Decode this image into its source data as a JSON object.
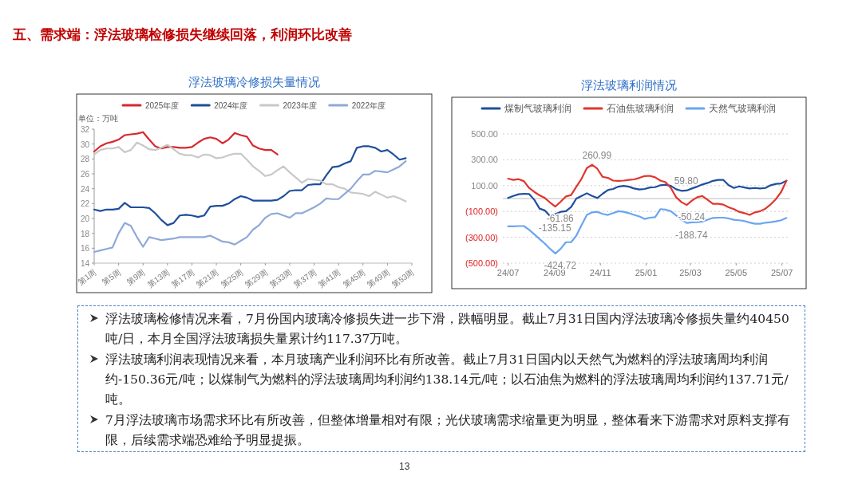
{
  "chart_data": [
    {
      "type": "other",
      "title": "五、需求端：浮法玻璃检修损失继续回落，利润环比改善"
    },
    {
      "type": "line",
      "title": "浮法玻璃冷修损失量情况",
      "ylabel": "单位：万吨",
      "legend": "top",
      "grid": false,
      "categories": [
        "第1周",
        null,
        null,
        null,
        "第5周",
        null,
        null,
        null,
        "第9周",
        null,
        null,
        null,
        "第13周",
        null,
        null,
        null,
        "第17周",
        null,
        null,
        null,
        "第21周",
        null,
        null,
        null,
        "第25周",
        null,
        null,
        null,
        "第29周",
        null,
        null,
        null,
        "第33周",
        null,
        null,
        null,
        "第37周",
        null,
        null,
        null,
        "第41周",
        null,
        null,
        null,
        "第45周",
        null,
        null,
        null,
        "第49周",
        null,
        null,
        null,
        "第53周"
      ],
      "ylim": [
        14,
        32
      ],
      "yticks": [
        14,
        16,
        18,
        20,
        22,
        24,
        26,
        28,
        30,
        32
      ],
      "series": [
        {
          "name": "2025年度",
          "color": "#d7282f",
          "values": [
            29.0,
            29.7,
            30.1,
            30.3,
            30.6,
            31.2,
            31.3,
            31.4,
            31.6,
            30.6,
            29.7,
            29.4,
            29.6,
            29.6,
            29.5,
            29.5,
            29.6,
            30.2,
            30.7,
            30.9,
            30.7,
            30.1,
            30.6,
            31.5,
            31.2,
            31.0,
            29.8,
            29.4,
            29.2,
            29.2,
            28.6,
            null,
            null,
            null,
            null,
            null,
            null,
            null,
            null,
            null,
            null,
            null,
            null,
            null,
            null,
            null,
            null,
            null,
            null,
            null,
            null,
            null,
            null
          ]
        },
        {
          "name": "2024年度",
          "color": "#1f4e9c",
          "values": [
            21.2,
            21.0,
            21.2,
            21.2,
            21.3,
            22.1,
            21.5,
            21.5,
            21.5,
            21.4,
            20.7,
            19.8,
            19.1,
            19.4,
            20.4,
            20.5,
            20.4,
            20.2,
            20.4,
            21.6,
            21.7,
            21.7,
            22.0,
            22.6,
            23.0,
            22.8,
            22.4,
            22.4,
            22.4,
            22.4,
            22.5,
            23.0,
            23.7,
            23.8,
            23.8,
            24.5,
            24.6,
            24.6,
            25.8,
            26.9,
            27.0,
            27.4,
            27.7,
            29.5,
            29.7,
            29.7,
            29.5,
            29.0,
            29.2,
            28.6,
            27.9,
            28.1,
            null
          ]
        },
        {
          "name": "2023年度",
          "color": "#c8c8c8",
          "values": [
            28.6,
            29.2,
            29.4,
            29.4,
            29.6,
            28.9,
            29.2,
            30.2,
            29.8,
            29.3,
            29.2,
            29.5,
            29.9,
            29.3,
            28.7,
            28.5,
            28.5,
            28.2,
            28.6,
            28.5,
            28.1,
            28.2,
            28.5,
            28.7,
            28.7,
            27.9,
            27.0,
            26.4,
            25.7,
            25.9,
            26.5,
            27.0,
            26.2,
            25.5,
            24.8,
            25.3,
            25.2,
            25.1,
            24.6,
            24.6,
            24.2,
            24.0,
            23.5,
            23.4,
            23.3,
            23.0,
            23.6,
            23.2,
            22.8,
            23.0,
            22.7,
            22.3,
            null
          ]
        },
        {
          "name": "2022年度",
          "color": "#8fa9d8",
          "values": [
            15.5,
            15.7,
            15.9,
            16.1,
            18.0,
            19.4,
            19.0,
            17.5,
            16.2,
            17.5,
            17.3,
            17.1,
            17.2,
            17.3,
            17.5,
            17.5,
            17.5,
            17.5,
            17.5,
            17.7,
            17.3,
            16.9,
            16.8,
            16.5,
            17.0,
            17.5,
            18.5,
            19.1,
            20.1,
            20.6,
            20.7,
            20.4,
            20.1,
            20.7,
            20.7,
            21.1,
            21.5,
            22.0,
            22.7,
            22.6,
            22.6,
            23.3,
            24.0,
            25.0,
            25.9,
            25.9,
            26.4,
            26.3,
            26.2,
            26.6,
            27.0,
            27.7,
            null
          ]
        }
      ]
    },
    {
      "type": "line",
      "title": "浮法玻璃利润情况",
      "legend": "top",
      "grid": "y",
      "x": [
        "2024-07-01",
        "2024-07-08",
        "2024-07-15",
        "2024-07-22",
        "2024-07-29",
        "2024-08-05",
        "2024-08-12",
        "2024-08-19",
        "2024-08-26",
        "2024-09-02",
        "2024-09-09",
        "2024-09-16",
        "2024-09-23",
        "2024-09-30",
        "2024-10-07",
        "2024-10-14",
        "2024-10-21",
        "2024-10-28",
        "2024-11-04",
        "2024-11-11",
        "2024-11-18",
        "2024-11-25",
        "2024-12-02",
        "2024-12-09",
        "2024-12-16",
        "2024-12-23",
        "2024-12-30",
        "2025-01-06",
        "2025-01-13",
        "2025-01-20",
        "2025-01-27",
        "2025-02-03",
        "2025-02-10",
        "2025-02-17",
        "2025-02-24",
        "2025-03-03",
        "2025-03-10",
        "2025-03-17",
        "2025-03-24",
        "2025-03-31",
        "2025-04-07",
        "2025-04-14",
        "2025-04-21",
        "2025-04-28",
        "2025-05-05",
        "2025-05-12",
        "2025-05-19",
        "2025-05-26",
        "2025-06-02",
        "2025-06-09",
        "2025-06-16",
        "2025-06-23",
        "2025-06-30",
        "2025-07-07"
      ],
      "xlim": [
        "2024-06-24",
        "2025-07-12"
      ],
      "xticks": [
        {
          "value": "2024-07-01",
          "label": "24/07"
        },
        {
          "value": "2024-09-01",
          "label": "24/09"
        },
        {
          "value": "2024-11-01",
          "label": "24/11"
        },
        {
          "value": "2025-01-01",
          "label": "25/01"
        },
        {
          "value": "2025-03-01",
          "label": "25/03"
        },
        {
          "value": "2025-05-01",
          "label": "25/05"
        },
        {
          "value": "2025-07-01",
          "label": "25/07"
        }
      ],
      "ylim": [
        -500,
        500
      ],
      "yticks": [
        {
          "value": -500,
          "label": "(500.00)"
        },
        {
          "value": -300,
          "label": "(300.00)"
        },
        {
          "value": -100,
          "label": "(100.00)"
        },
        {
          "value": 100,
          "label": "100.00"
        },
        {
          "value": 300,
          "label": "300.00"
        },
        {
          "value": 500,
          "label": "500.00"
        }
      ],
      "series": [
        {
          "name": "煤制气玻璃利润",
          "color": "#1f4e9c",
          "values": [
            4,
            20,
            33,
            37,
            35,
            -10,
            -78,
            -92,
            -135.15,
            -120,
            -103,
            -98,
            -66,
            0,
            20,
            41,
            20,
            4,
            37,
            66,
            74,
            92,
            98,
            92,
            78,
            70,
            74,
            86,
            88,
            103,
            107,
            98,
            72,
            59.8,
            62,
            78,
            92,
            109,
            121,
            137,
            144,
            144,
            103,
            82,
            94,
            86,
            78,
            82,
            78,
            82,
            103,
            113,
            117,
            138.14
          ]
        },
        {
          "name": "石油焦玻璃利润",
          "color": "#e0362c",
          "values": [
            154,
            144,
            150,
            135,
            82,
            51,
            25,
            4,
            -31,
            -61.86,
            -25,
            16,
            27,
            92,
            154,
            236,
            260.99,
            230,
            168,
            160,
            139,
            137,
            139,
            144,
            148,
            160,
            174,
            176,
            164,
            139,
            127,
            82,
            10,
            -27,
            -50.24,
            -16,
            10,
            20,
            -10,
            -41,
            -41,
            -47,
            -68,
            -82,
            -103,
            -113,
            -127,
            -107,
            -98,
            -78,
            -45,
            -4,
            51,
            137.71
          ]
        },
        {
          "name": "天然气玻璃利润",
          "color": "#6aa5f0",
          "values": [
            -215,
            -215,
            -213,
            -213,
            -242,
            -277,
            -314,
            -349,
            -390,
            -424.72,
            -390,
            -338,
            -338,
            -287,
            -205,
            -127,
            -107,
            -103,
            -119,
            -127,
            -113,
            -98,
            -103,
            -113,
            -127,
            -139,
            -158,
            -148,
            -144,
            -82,
            -86,
            -98,
            -131,
            -164,
            -188.74,
            -185,
            -183,
            -178,
            -164,
            -150,
            -148,
            -148,
            -154,
            -164,
            -168,
            -174,
            -186,
            -195,
            -195,
            -187,
            -183,
            -177,
            -168,
            -150.36
          ]
        }
      ],
      "annotations": [
        {
          "text": "260.99",
          "x": "2024-10-21",
          "y": 260.99
        },
        {
          "text": "-61.86",
          "x": "2024-09-02",
          "y": -61.86
        },
        {
          "text": "-135.15",
          "x": "2024-08-26",
          "y": -135.15
        },
        {
          "text": "59.80",
          "x": "2025-02-17",
          "y": 59.8
        },
        {
          "text": "-50.24",
          "x": "2025-02-24",
          "y": -50.24
        },
        {
          "text": "-188.74",
          "x": "2025-02-24",
          "y": -188.74
        },
        {
          "text": "-424.72",
          "x": "2024-09-02",
          "y": -424.72
        }
      ]
    },
    {
      "type": "other",
      "annotations": [
        "浮法玻璃检修情况来看，7月份国内玻璃冷修损失进一步下滑，跌幅明显。截止7月31日国内浮法玻璃冷修损失量约40450吨/日，本月全国浮法玻璃损失量累计约117.37万吨。",
        "浮法玻璃利润表现情况来看，本月玻璃产业利润环比有所改善。截止7月31日国内以天然气为燃料的浮法玻璃周均利润约-150.36元/吨；以煤制气为燃料的浮法玻璃周均利润约138.14元/吨；以石油焦为燃料的浮法玻璃周均利润约137.71元/吨。",
        "7月浮法玻璃市场需求环比有所改善，但整体增量相对有限；光伏玻璃需求缩量更为明显，整体看来下游需求对原料支撑有限，后续需求端恐难给予明显提振。",
        "13"
      ]
    }
  ]
}
